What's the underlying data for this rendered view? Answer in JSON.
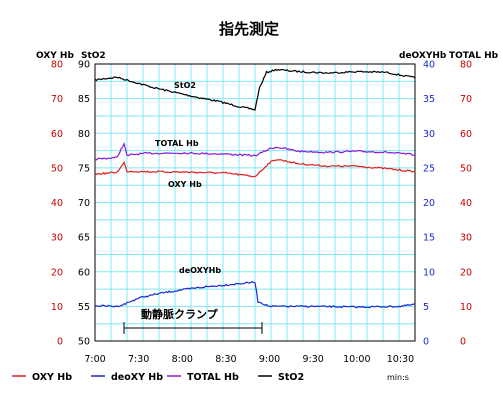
{
  "title": "指先測定",
  "axis_headers": {
    "oxy": "OXY Hb",
    "sto2": "StO2",
    "deoxy": "deOXYHb",
    "total": "TOTAL Hb"
  },
  "time_unit": "min:s",
  "annotation": "動静脈クランプ",
  "series_labels": {
    "sto2": "StO2",
    "total": "TOTAL Hb",
    "oxy": "OXY Hb",
    "deoxy": "deOXYHb"
  },
  "legend": [
    {
      "label": "OXY Hb",
      "color": "#e02020"
    },
    {
      "label": "deoXY Hb",
      "color": "#1a2ad0"
    },
    {
      "label": "TOTAL Hb",
      "color": "#8a1ad8"
    },
    {
      "label": "StO2",
      "color": "#000000"
    }
  ],
  "colors": {
    "oxy": "#e02020",
    "deoxy": "#1a2ad0",
    "total": "#8a1ad8",
    "sto2": "#000000",
    "grid": "#7fe8f0",
    "left_axis_text": "#cc0000",
    "right_axis_text": "#1a2ad0"
  },
  "chart_data": {
    "type": "line",
    "title": "指先測定",
    "x_ticks": [
      "7:00",
      "7:30",
      "8:00",
      "8:30",
      "9:00",
      "9:30",
      "10:00",
      "10:30"
    ],
    "x_unit": "min:s",
    "xlim": [
      "7:00",
      "10:40"
    ],
    "left_axis_1": {
      "label": "OXY Hb",
      "range": [
        0,
        80
      ],
      "ticks": [
        0,
        10,
        20,
        30,
        40,
        50,
        60,
        70,
        80
      ]
    },
    "left_axis_2": {
      "label": "StO2",
      "range": [
        50,
        90
      ],
      "ticks": [
        50,
        55,
        60,
        65,
        70,
        75,
        80,
        85,
        90
      ]
    },
    "right_axis_1": {
      "label": "deOXYHb",
      "range": [
        0,
        40
      ],
      "ticks": [
        0,
        5,
        10,
        15,
        20,
        25,
        30,
        35,
        40
      ]
    },
    "right_axis_2": {
      "label": "TOTAL Hb",
      "range": [
        0,
        80
      ],
      "ticks": [
        0,
        10,
        20,
        30,
        40,
        50,
        60,
        70,
        80
      ]
    },
    "grid": true,
    "clamp_interval": {
      "label": "動静脈クランプ",
      "start": "7:20",
      "end": "8:50"
    },
    "series": [
      {
        "name": "StO2",
        "axis": "StO2",
        "color": "#000000",
        "x": [
          "7:00",
          "7:15",
          "7:25",
          "7:40",
          "7:55",
          "8:10",
          "8:25",
          "8:40",
          "8:50",
          "8:53",
          "8:58",
          "9:05",
          "9:20",
          "9:40",
          "10:00",
          "10:20",
          "10:40"
        ],
        "y": [
          87.7,
          88.1,
          87.5,
          86.6,
          85.9,
          85.2,
          84.6,
          83.8,
          83.4,
          86.5,
          88.8,
          89.2,
          88.9,
          88.7,
          88.9,
          88.8,
          88.0
        ]
      },
      {
        "name": "TOTAL Hb",
        "axis": "TOTAL Hb",
        "color": "#8a1ad8",
        "x": [
          "7:00",
          "7:15",
          "7:20",
          "7:22",
          "7:25",
          "7:35",
          "8:00",
          "8:30",
          "8:50",
          "9:00",
          "9:05",
          "9:20",
          "9:40",
          "10:00",
          "10:20",
          "10:40"
        ],
        "y": [
          52.5,
          53.0,
          57.0,
          53.5,
          53.8,
          54.2,
          54.3,
          54.0,
          53.5,
          55.5,
          56.0,
          54.8,
          54.5,
          54.8,
          54.5,
          53.8
        ]
      },
      {
        "name": "OXY Hb",
        "axis": "OXY Hb",
        "color": "#e02020",
        "x": [
          "7:00",
          "7:15",
          "7:20",
          "7:22",
          "7:25",
          "7:40",
          "8:00",
          "8:30",
          "8:50",
          "9:00",
          "9:05",
          "9:20",
          "9:40",
          "10:00",
          "10:20",
          "10:40"
        ],
        "y": [
          48.2,
          48.7,
          51.5,
          49.0,
          49.0,
          48.9,
          48.8,
          48.5,
          47.5,
          51.5,
          52.5,
          51.2,
          50.5,
          50.5,
          49.8,
          48.9
        ]
      },
      {
        "name": "deOXYHb",
        "axis": "deOXYHb",
        "color": "#1a2ad0",
        "x": [
          "7:00",
          "7:15",
          "7:20",
          "7:30",
          "7:45",
          "8:00",
          "8:15",
          "8:30",
          "8:45",
          "8:50",
          "8:52",
          "9:00",
          "9:30",
          "10:00",
          "10:30",
          "10:40"
        ],
        "y": [
          5.1,
          5.0,
          5.3,
          6.2,
          6.9,
          7.4,
          7.8,
          8.1,
          8.4,
          8.5,
          5.7,
          5.0,
          5.0,
          4.9,
          5.0,
          5.3
        ]
      }
    ]
  }
}
